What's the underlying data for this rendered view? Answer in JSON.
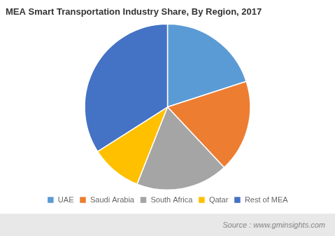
{
  "chart_data": {
    "type": "pie",
    "title": "MEA Smart Transportation Industry Share, By Region, 2017",
    "categories": [
      "UAE",
      "Saudi Arabia",
      "South Africa",
      "Qatar",
      "Rest of MEA"
    ],
    "values": [
      20,
      18,
      18,
      10,
      34
    ],
    "colors": [
      "#5B9BD5",
      "#ED7D31",
      "#A5A5A5",
      "#FFC000",
      "#4472C4"
    ],
    "legend": "bottom",
    "annotations": [
      "Source : www.gminsights.com"
    ]
  }
}
